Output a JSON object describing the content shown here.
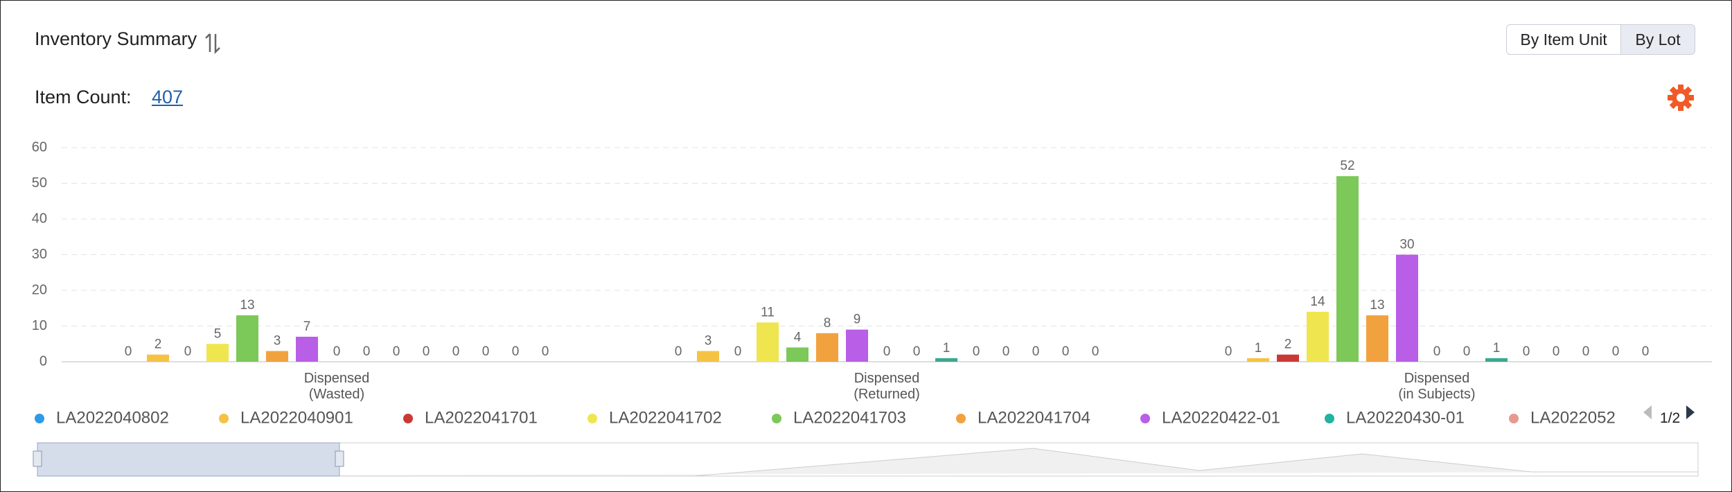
{
  "header": {
    "title": "Inventory Summary",
    "buttons": [
      "By Item Unit",
      "By Lot"
    ],
    "item_count_label": "Item Count:",
    "item_count": "407"
  },
  "chart_data": {
    "type": "bar",
    "categories": [
      "Dispensed\n(Wasted)",
      "Dispensed\n(Returned)",
      "Dispensed\n(in Subjects)"
    ],
    "series": [
      {
        "name": "LA2022040802",
        "color": "#2d9be8",
        "values": [
          0,
          0,
          0
        ]
      },
      {
        "name": "LA2022040901",
        "color": "#f5c244",
        "values": [
          2,
          3,
          1
        ]
      },
      {
        "name": "LA2022041701",
        "color": "#c93a36",
        "values": [
          0,
          0,
          2
        ]
      },
      {
        "name": "LA2022041702",
        "color": "#efe54e",
        "values": [
          5,
          11,
          14
        ]
      },
      {
        "name": "LA2022041703",
        "color": "#7cc858",
        "values": [
          13,
          4,
          52
        ]
      },
      {
        "name": "LA2022041704",
        "color": "#f1a23f",
        "values": [
          3,
          8,
          13
        ]
      },
      {
        "name": "LA20220422-01",
        "color": "#b95ee6",
        "values": [
          7,
          9,
          30
        ]
      },
      {
        "name": "LA20220430-01",
        "color": "#22b2a2",
        "values": [
          0,
          0,
          0
        ]
      },
      {
        "name": "LA2022052",
        "color": "#e8998d",
        "values": [
          0,
          0,
          0
        ]
      },
      {
        "name": null,
        "color": "#3ba88f",
        "values": [
          0,
          1,
          1
        ]
      },
      {
        "name": null,
        "values": [
          0,
          0,
          0
        ]
      },
      {
        "name": null,
        "values": [
          0,
          0,
          0
        ]
      },
      {
        "name": null,
        "values": [
          0,
          0,
          0
        ]
      },
      {
        "name": null,
        "values": [
          0,
          0,
          0
        ]
      },
      {
        "name": null,
        "values": [
          0,
          0,
          0
        ]
      }
    ],
    "ylim": [
      0,
      60
    ],
    "yticks": [
      0,
      10,
      20,
      30,
      40,
      50,
      60
    ],
    "grid": true,
    "legend_page": "1/2"
  }
}
